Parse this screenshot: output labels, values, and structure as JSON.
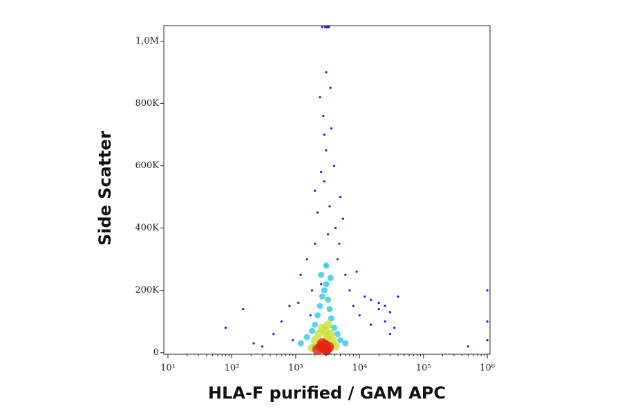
{
  "chart_data": {
    "type": "scatter",
    "x_label": "HLA-F purified / GAM APC",
    "y_label": "Side Scatter",
    "xscale": "log",
    "xlim": [
      8.6,
      1100000
    ],
    "ylim": [
      -5000,
      1050000
    ],
    "xticks": [
      {
        "value": 10,
        "label": "10¹"
      },
      {
        "value": 100,
        "label": "10²"
      },
      {
        "value": 1000,
        "label": "10³"
      },
      {
        "value": 10000,
        "label": "10⁴"
      },
      {
        "value": 100000,
        "label": "10⁵"
      },
      {
        "value": 1000000,
        "label": "10⁶"
      }
    ],
    "yticks": [
      0,
      {
        "value": 200000,
        "label": "200K"
      },
      {
        "value": 400000,
        "label": "400K"
      },
      {
        "value": 600000,
        "label": "600K"
      },
      {
        "value": 800000,
        "label": "800K"
      },
      {
        "value": 1000000,
        "label": "1,0M"
      }
    ],
    "series": [
      {
        "color": "#1a1adc",
        "x": [
          300,
          450,
          600,
          800,
          900,
          1200,
          1500,
          1800,
          2000,
          2200,
          2500,
          2800,
          3000,
          3200,
          3500,
          4000,
          4500,
          5000,
          6000,
          7000,
          8000,
          10000,
          12000,
          15000,
          20000,
          25000,
          30000,
          35000,
          40000,
          80,
          150,
          220,
          2600,
          2900,
          3100,
          3300,
          2400,
          2700,
          3600,
          2000,
          1100,
          4200,
          15000,
          20000,
          25000,
          30000,
          3000,
          2800,
          3400,
          3200,
          500000,
          1000000,
          1000000,
          1000000,
          3000,
          2500,
          1700,
          4800,
          5500,
          9000
        ],
        "values": [
          20000,
          60000,
          100000,
          150000,
          40000,
          250000,
          300000,
          200000,
          350000,
          450000,
          580000,
          700000,
          900000,
          1045000,
          850000,
          600000,
          300000,
          500000,
          250000,
          200000,
          150000,
          120000,
          180000,
          170000,
          140000,
          100000,
          60000,
          80000,
          180000,
          80000,
          140000,
          30000,
          1045000,
          1045000,
          1045000,
          1045000,
          820000,
          760000,
          720000,
          520000,
          160000,
          400000,
          90000,
          160000,
          150000,
          130000,
          650000,
          550000,
          470000,
          380000,
          20000,
          200000,
          100000,
          40000,
          280000,
          220000,
          120000,
          350000,
          430000,
          260000
        ]
      },
      {
        "color": "#2cc8e8",
        "x": [
          1200,
          1500,
          1800,
          2000,
          2200,
          2400,
          2600,
          2800,
          3000,
          3200,
          3400,
          3600,
          4000,
          4500,
          5000,
          6000,
          2500,
          3000,
          3500,
          2000
        ],
        "values": [
          30000,
          50000,
          70000,
          90000,
          120000,
          150000,
          180000,
          200000,
          220000,
          170000,
          140000,
          110000,
          80000,
          60000,
          40000,
          30000,
          250000,
          280000,
          240000,
          20000
        ]
      },
      {
        "color": "#c8e030",
        "x": [
          2000,
          2300,
          2600,
          2900,
          3200,
          3500,
          3800,
          2400,
          2800,
          3100,
          1800,
          4200
        ],
        "values": [
          40000,
          60000,
          80000,
          70000,
          90000,
          60000,
          40000,
          20000,
          30000,
          50000,
          15000,
          20000
        ]
      },
      {
        "color": "#e82010",
        "x": [
          2200,
          2500,
          2700,
          2900,
          3100,
          3300,
          2600,
          3000
        ],
        "values": [
          10000,
          20000,
          15000,
          25000,
          12000,
          18000,
          30000,
          8000
        ]
      }
    ]
  }
}
